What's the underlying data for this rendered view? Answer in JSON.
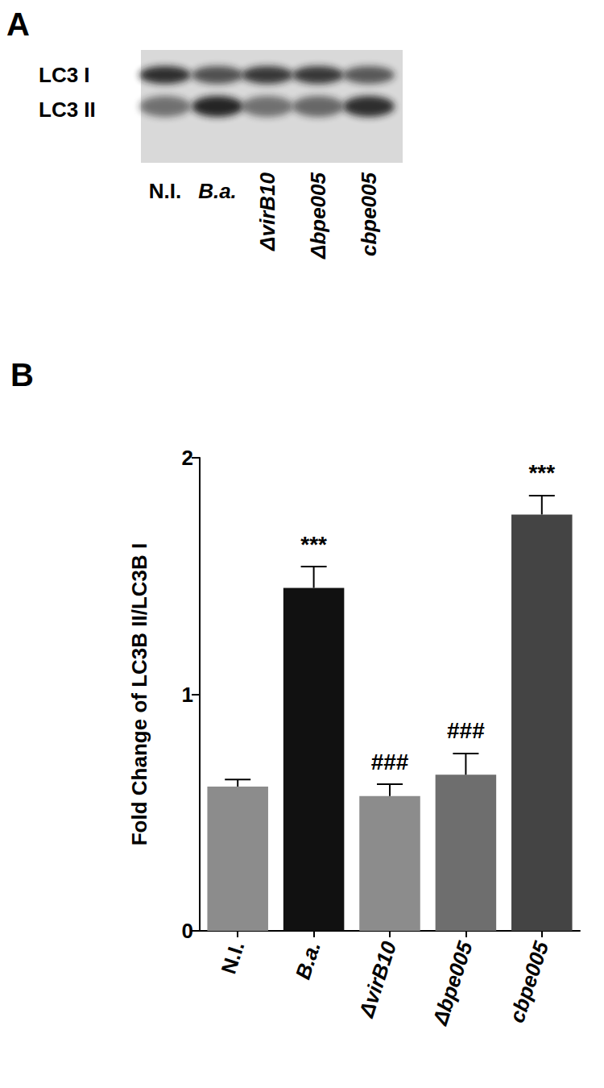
{
  "panel_a": {
    "label": "A",
    "rows": [
      "LC3 I",
      "LC3 II"
    ],
    "lanes": [
      "N.I.",
      "B.a.",
      "ΔvirB10",
      "Δbpe005",
      "cbpe005"
    ]
  },
  "chart_data": {
    "type": "bar",
    "panel_label": "B",
    "y_label": "Fold Change of LC3B II/LC3B I",
    "categories": [
      "N.I.",
      "B.a.",
      "ΔvirB10",
      "Δbpe005",
      "cbpe005"
    ],
    "values": [
      0.61,
      1.45,
      0.57,
      0.66,
      1.76
    ],
    "errors": [
      0.03,
      0.09,
      0.05,
      0.09,
      0.08
    ],
    "annotations": [
      null,
      "***",
      "###",
      "###",
      "***"
    ],
    "colors": [
      "#8c8c8c",
      "#111111",
      "#8c8c8c",
      "#6e6e6e",
      "#444444"
    ],
    "ylim": [
      0,
      2
    ],
    "yticks": [
      0,
      1,
      2
    ],
    "grid": false
  }
}
